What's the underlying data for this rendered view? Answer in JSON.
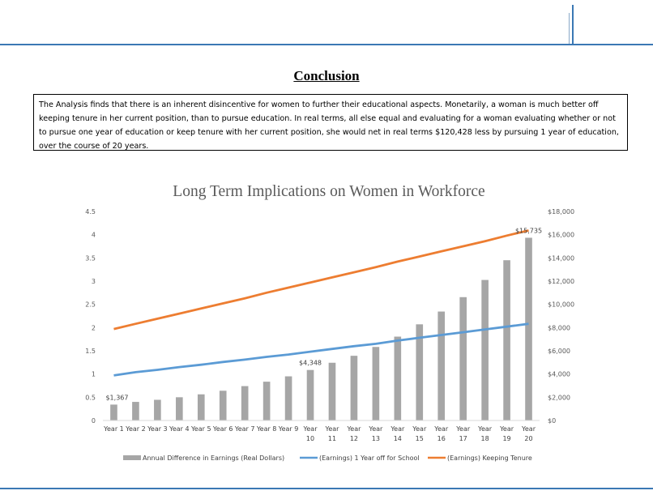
{
  "heading": "Conclusion",
  "conclusion_text": "The Analysis finds that there is an inherent disincentive for women to further their educational aspects. Monetarily, a woman is much better off keeping tenure in her current position, than to pursue education. In real terms, all else equal and evaluating for a woman evaluating whether or not to pursue one year of education or keep tenure with her current position, she would net in real terms $120,428 less by pursuing 1 year of education, over the course of 20 years.",
  "colors": {
    "rule": "#3b78b4",
    "bars": "#a6a6a6",
    "school_line": "#5b9bd5",
    "tenure_line": "#ed7d31"
  },
  "chart_data": {
    "type": "bar",
    "title": "Long Term Implications on Women in Workforce",
    "categories": [
      [
        "Year 1"
      ],
      [
        "Year 2"
      ],
      [
        "Year 3"
      ],
      [
        "Year 4"
      ],
      [
        "Year 5"
      ],
      [
        "Year 6"
      ],
      [
        "Year 7"
      ],
      [
        "Year 8"
      ],
      [
        "Year 9"
      ],
      [
        "Year",
        "10"
      ],
      [
        "Year",
        "11"
      ],
      [
        "Year",
        "12"
      ],
      [
        "Year",
        "13"
      ],
      [
        "Year",
        "14"
      ],
      [
        "Year",
        "15"
      ],
      [
        "Year",
        "16"
      ],
      [
        "Year",
        "17"
      ],
      [
        "Year",
        "18"
      ],
      [
        "Year",
        "19"
      ],
      [
        "Year",
        "20"
      ]
    ],
    "left_axis": {
      "min": 0,
      "max": 4.5,
      "ticks": [
        "0",
        "0.5",
        "1",
        "1.5",
        "2",
        "2.5",
        "3",
        "3.5",
        "4",
        "4.5"
      ]
    },
    "right_axis": {
      "min": 0,
      "max": 18000,
      "ticks": [
        "$0",
        "$2,000",
        "$4,000",
        "$6,000",
        "$8,000",
        "$10,000",
        "$12,000",
        "$14,000",
        "$16,000",
        "$18,000"
      ]
    },
    "series": [
      {
        "name": "Annual Difference in Earnings (Real Dollars)",
        "type": "bar",
        "axis": "right",
        "values": [
          1367,
          1600,
          1780,
          2000,
          2250,
          2560,
          2960,
          3340,
          3800,
          4348,
          4970,
          5570,
          6330,
          7220,
          8280,
          9380,
          10620,
          12100,
          13800,
          15735
        ]
      },
      {
        "name": "(Earnings) 1 Year off for School",
        "type": "line",
        "axis": "left",
        "values": [
          0.97,
          1.04,
          1.09,
          1.15,
          1.2,
          1.26,
          1.31,
          1.37,
          1.42,
          1.48,
          1.54,
          1.6,
          1.65,
          1.72,
          1.78,
          1.84,
          1.9,
          1.96,
          2.02,
          2.08
        ]
      },
      {
        "name": "(Earnings) Keeping Tenure",
        "type": "line",
        "axis": "left",
        "values": [
          1.97,
          2.08,
          2.19,
          2.3,
          2.41,
          2.52,
          2.63,
          2.75,
          2.86,
          2.97,
          3.08,
          3.19,
          3.3,
          3.42,
          3.53,
          3.64,
          3.75,
          3.86,
          3.98,
          4.09
        ]
      }
    ],
    "data_labels": [
      {
        "series": 0,
        "index": 0,
        "text": "$1,367"
      },
      {
        "series": 0,
        "index": 9,
        "text": "$4,348"
      },
      {
        "series": 0,
        "index": 19,
        "text": "$15,735"
      }
    ],
    "legend_position": "bottom",
    "grid": false
  }
}
